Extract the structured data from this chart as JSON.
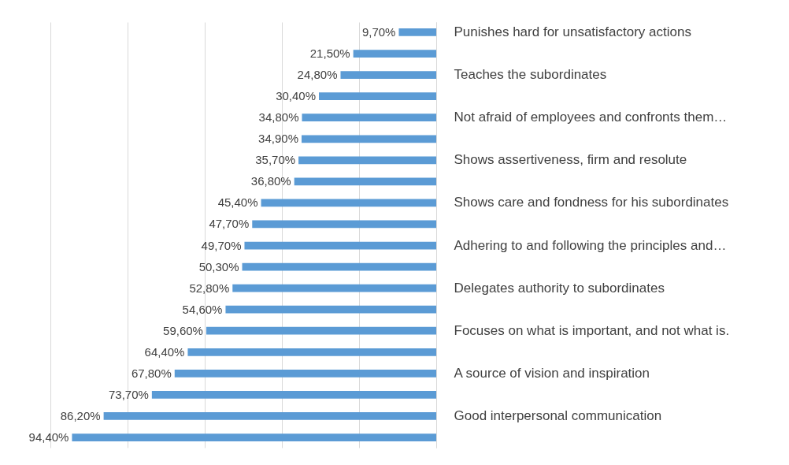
{
  "chart_data": {
    "type": "bar",
    "orientation": "horizontal",
    "categories": [
      "Punishes hard for unsatisfactory actions",
      null,
      "Teaches the subordinates",
      null,
      "Not afraid of employees and confronts them…",
      null,
      "Shows assertiveness, firm and resolute",
      null,
      "Shows care and fondness for his subordinates",
      null,
      "Adhering to and following the principles and…",
      null,
      "Delegates authority to subordinates",
      null,
      "Focuses on what is important, and not what is.",
      null,
      "A source of vision and inspiration",
      null,
      "Good interpersonal communication",
      null
    ],
    "values": [
      9.7,
      21.5,
      24.8,
      30.4,
      34.8,
      34.9,
      35.7,
      36.8,
      45.4,
      47.7,
      49.7,
      50.3,
      52.8,
      54.6,
      59.6,
      64.4,
      67.8,
      73.7,
      86.2,
      94.4
    ],
    "value_labels": [
      "9,70%",
      "21,50%",
      "24,80%",
      "30,40%",
      "34,80%",
      "34,90%",
      "35,70%",
      "36,80%",
      "45,40%",
      "47,70%",
      "49,70%",
      "50,30%",
      "52,80%",
      "54,60%",
      "59,60%",
      "64,40%",
      "67,80%",
      "73,70%",
      "86,20%",
      "94,40%"
    ],
    "color": "#5b9bd5",
    "xlim": [
      100,
      0
    ],
    "xticks": [
      {
        "value": 0,
        "label": null
      },
      {
        "value": 20,
        "label": null
      },
      {
        "value": 40,
        "label": null
      },
      {
        "value": 60,
        "label": null
      },
      {
        "value": 80,
        "label": null
      },
      {
        "value": 100,
        "label": null
      }
    ],
    "grid": "x",
    "tick_labels": "y"
  }
}
